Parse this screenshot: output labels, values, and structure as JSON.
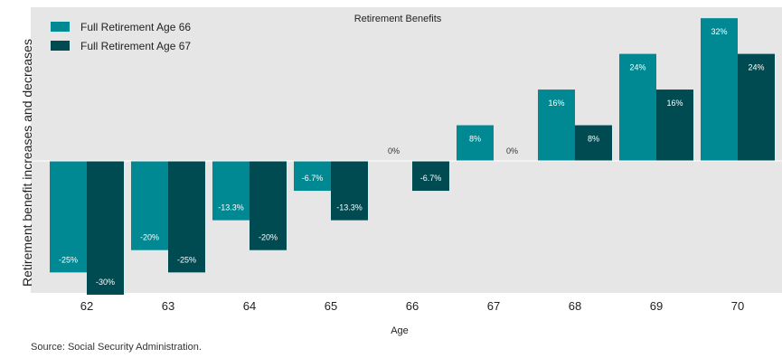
{
  "chart_data": {
    "type": "bar",
    "title": "Retirement Benefits",
    "xlabel": "Age",
    "ylabel": "Retirement benefit increases and decreases",
    "categories": [
      "62",
      "63",
      "64",
      "65",
      "66",
      "67",
      "68",
      "69",
      "70"
    ],
    "series": [
      {
        "name": "Full Retirement Age 66",
        "values": [
          -25,
          -20,
          -13.3,
          -6.7,
          0,
          8,
          16,
          24,
          32
        ],
        "labels": [
          "-25%",
          "-20%",
          "-13.3%",
          "-6.7%",
          "0%",
          "8%",
          "16%",
          "24%",
          "32%"
        ],
        "color": "#008893"
      },
      {
        "name": "Full Retirement Age 67",
        "values": [
          -30,
          -25,
          -20,
          -13.3,
          -6.7,
          0,
          8,
          16,
          24
        ],
        "labels": [
          "-30%",
          "-25%",
          "-20%",
          "-13.3%",
          "-6.7%",
          "0%",
          "8%",
          "16%",
          "24%"
        ],
        "color": "#004b52"
      }
    ],
    "ylim": [
      -30,
      32
    ],
    "grid": false,
    "legend_position": "top-left",
    "background_color": "#e6e6e6"
  },
  "source": "Source: Social Security Administration."
}
